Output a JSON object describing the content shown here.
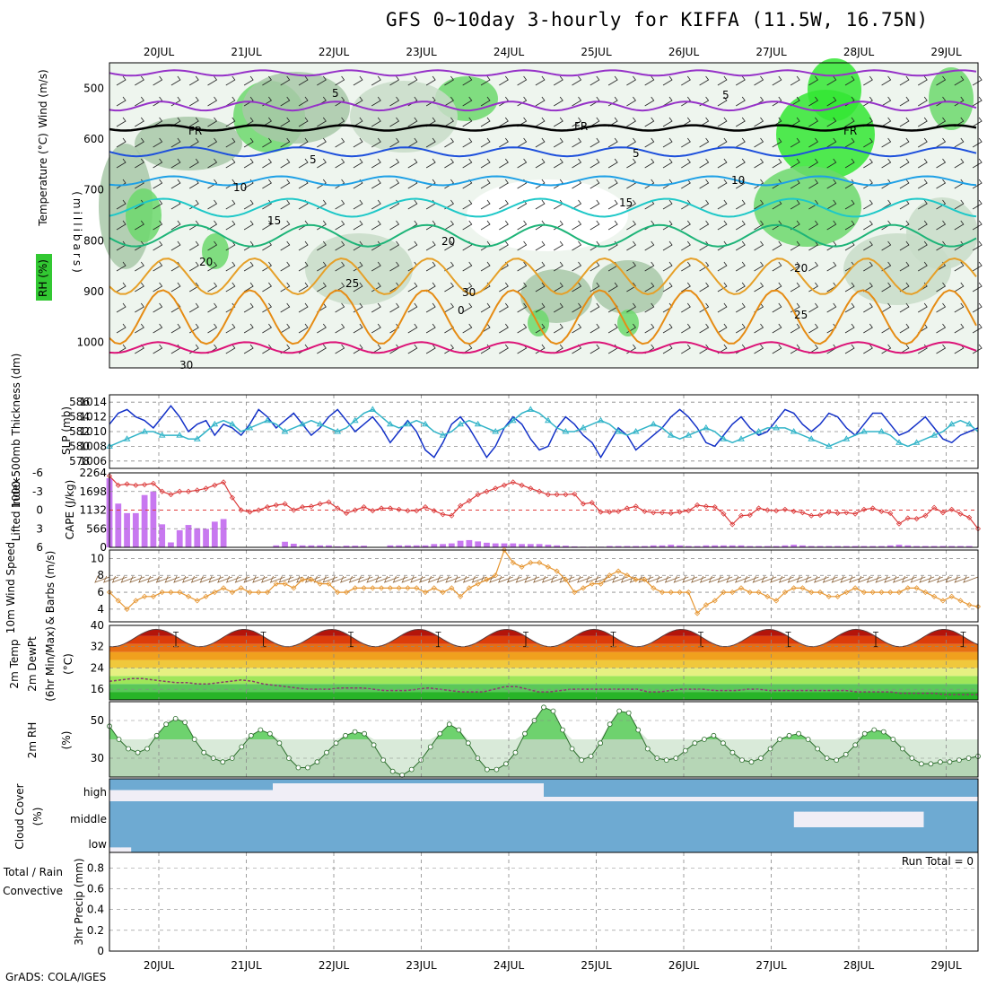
{
  "title": "GFS 0~10day 3-hourly for KIFFA (11.5W, 16.75N)",
  "credit": "GrADS: COLA/IGES",
  "dates": [
    "20JUL",
    "21JUL",
    "22JUL",
    "23JUL",
    "24JUL",
    "25JUL",
    "26JUL",
    "27JUL",
    "28JUL",
    "29JUL"
  ],
  "colors": {
    "rh_green": "#32c832",
    "slp_blue": "#1432c8",
    "thick_cyan": "#32b4c8",
    "li_red": "#dc3c3c",
    "cape_purple": "#c878f0",
    "wind_orange": "#e69632",
    "barb_brown": "#8c643c",
    "rh2m_green": "#3ca03c",
    "cloud_blue": "#6eaad2",
    "precip_green": "#28a028"
  },
  "chart_data": [
    {
      "type": "heatmap",
      "name": "Upper-air cross section",
      "labels": {
        "rh": "RH (%)",
        "temp": "Temperature (°C)",
        "wind": "Wind (m/s)",
        "axis": "(millibars)"
      },
      "yticks": [
        "500",
        "600",
        "700",
        "800",
        "900",
        "1000"
      ],
      "ylim": [
        450,
        1050
      ],
      "isotherm_labels": [
        "5",
        "5",
        "FR",
        "FR",
        "FR",
        "5",
        "5",
        "10",
        "10",
        "15",
        "15",
        "20",
        "20",
        "20",
        "25",
        "25",
        "30",
        "0",
        "30"
      ]
    },
    {
      "type": "line",
      "name": "SLP and thickness",
      "labels": {
        "thickness": "1000-500mb Thickness (dm)",
        "slp": "SLP (mb)"
      },
      "yticks_left": [
        "586",
        "584",
        "582",
        "580",
        "578"
      ],
      "yticks_right": [
        "1014",
        "1012",
        "1010",
        "1008",
        "1006"
      ],
      "ylim_left": [
        577,
        587
      ],
      "ylim_right": [
        1005,
        1015
      ],
      "series": [
        {
          "name": "SLP (mb)",
          "values": [
            1011,
            1012.5,
            1013,
            1012,
            1011.5,
            1010.5,
            1012,
            1013.5,
            1012,
            1010,
            1011,
            1011.5,
            1009.5,
            1011,
            1010.5,
            1009.5,
            1011,
            1013,
            1012,
            1010.5,
            1011.5,
            1012.5,
            1011,
            1009.5,
            1010.5,
            1012,
            1013,
            1011.5,
            1010,
            1011,
            1012,
            1010.5,
            1008.5,
            1010,
            1011.5,
            1010,
            1007.5,
            1006.5,
            1008.5,
            1011,
            1012,
            1010.5,
            1008.5,
            1006.5,
            1008,
            1010.5,
            1012,
            1011,
            1009,
            1007.5,
            1008,
            1010.5,
            1012,
            1011,
            1009.5,
            1008.5,
            1006.5,
            1008.5,
            1010.5,
            1009.5,
            1007.5,
            1008.5,
            1009.5,
            1010.5,
            1012,
            1013,
            1012,
            1010.5,
            1008.5,
            1008,
            1009.5,
            1011,
            1012,
            1010.5,
            1009.5,
            1010,
            1011.5,
            1013,
            1012.5,
            1011,
            1010,
            1011,
            1012.5,
            1012,
            1010.5,
            1009.5,
            1011,
            1012.5,
            1012.5,
            1011,
            1009.5,
            1010,
            1011,
            1012,
            1010.5,
            1009,
            1008.5,
            1009.5,
            1010,
            1010.5
          ]
        },
        {
          "name": "1000-500mb Thickness (dm)",
          "values": [
            580,
            580.5,
            581,
            581.5,
            582,
            582,
            581.5,
            581.5,
            581.5,
            581,
            581,
            582,
            583,
            583.5,
            583,
            582,
            582.5,
            583,
            583.5,
            583,
            582,
            582.5,
            583,
            583.5,
            583,
            582.5,
            582,
            582.5,
            583.5,
            584.5,
            585,
            584,
            583,
            582.5,
            583,
            583.5,
            583,
            582,
            581.5,
            582,
            583,
            583.5,
            583,
            582.5,
            582,
            582.5,
            583.5,
            584.5,
            585,
            584.5,
            583.5,
            582.5,
            582,
            582,
            582.5,
            583,
            583.5,
            583,
            582,
            581.5,
            582,
            582.5,
            583,
            582.5,
            581.5,
            581,
            581.5,
            582,
            582.5,
            582,
            581,
            580.5,
            581,
            581.5,
            582,
            582.5,
            582.5,
            582.5,
            582,
            581.5,
            581,
            580.5,
            580,
            580.5,
            581,
            581.5,
            582,
            582,
            582,
            581.5,
            580.5,
            580,
            580.5,
            581,
            581.5,
            582,
            583,
            583.5,
            583,
            582
          ]
        }
      ]
    },
    {
      "type": "bar",
      "name": "Lifted index and CAPE",
      "labels": {
        "li": "Lifted Index",
        "cape": "CAPE (J/kg)"
      },
      "yticks_left": [
        "-6",
        "-3",
        "0",
        "3",
        "6"
      ],
      "yticks_right": [
        "2264",
        "1698",
        "1132",
        "566",
        "0"
      ],
      "ylim_left": [
        -6,
        6
      ],
      "ylim_right": [
        0,
        2264
      ],
      "series": [
        {
          "name": "CAPE (J/kg)",
          "values": [
            2100,
            1330,
            1040,
            1040,
            1590,
            1700,
            700,
            150,
            520,
            680,
            580,
            560,
            780,
            860,
            0,
            0,
            0,
            0,
            0,
            60,
            170,
            110,
            60,
            60,
            60,
            60,
            30,
            50,
            50,
            50,
            0,
            0,
            60,
            60,
            60,
            60,
            60,
            100,
            100,
            120,
            200,
            220,
            180,
            140,
            120,
            120,
            120,
            100,
            100,
            100,
            80,
            60,
            50,
            30,
            20,
            20,
            20,
            40,
            40,
            40,
            40,
            40,
            60,
            60,
            80,
            60,
            40,
            40,
            60,
            60,
            60,
            60,
            60,
            40,
            40,
            40,
            40,
            60,
            80,
            60,
            40,
            40,
            40,
            40,
            40,
            40,
            40,
            40,
            40,
            60,
            80,
            60,
            40,
            40,
            40,
            40,
            40,
            40,
            40,
            0
          ]
        },
        {
          "name": "Lifted Index",
          "values": [
            -5.5,
            -4,
            -4.2,
            -4,
            -4.1,
            -4.3,
            -3,
            -2.5,
            -3,
            -3,
            -3.2,
            -3.5,
            -4,
            -4.5,
            -2,
            0,
            0.3,
            0,
            -0.5,
            -0.8,
            -1,
            0,
            -0.5,
            -0.6,
            -1,
            -1.3,
            -0.3,
            0.5,
            0,
            -0.5,
            0.1,
            -0.3,
            -0.3,
            -0.1,
            0.1,
            0.1,
            -0.5,
            0.1,
            0.7,
            0.9,
            -0.7,
            -1.5,
            -2.5,
            -3,
            -3.5,
            -4,
            -4.5,
            -4,
            -3.5,
            -3,
            -2.5,
            -2.5,
            -2.5,
            -2.6,
            -1,
            -1.2,
            0.3,
            0.3,
            0.2,
            -0.3,
            -0.6,
            0.2,
            0.4,
            0.4,
            0.5,
            0.3,
            0.1,
            -0.8,
            -0.6,
            -0.5,
            0.6,
            2.3,
            0.9,
            0.8,
            -0.3,
            0,
            0.1,
            -0.1,
            0.2,
            0.4,
            0.9,
            0.8,
            0.3,
            0.5,
            0.4,
            0.6,
            -0.1,
            -0.3,
            0.2,
            0.5,
            2.2,
            1.3,
            1.4,
            0.9,
            -0.4,
            0.4,
            -0.1,
            0.6,
            1.2,
            3
          ]
        }
      ]
    },
    {
      "type": "line",
      "name": "10m wind",
      "labels": {
        "speed": "10m Wind Speed",
        "barbs": "& Barbs (m/s)"
      },
      "yticks": [
        "4",
        "6",
        "8",
        "10"
      ],
      "ylim": [
        2.5,
        11
      ],
      "series": [
        {
          "name": "10m Wind Speed (m/s)",
          "values": [
            6,
            5,
            4,
            5,
            5.5,
            5.5,
            6,
            6,
            6,
            5.5,
            5,
            5.5,
            6,
            6.5,
            6,
            6.5,
            6,
            6,
            6,
            7,
            7,
            6.5,
            7.5,
            7.5,
            7,
            7,
            6,
            6,
            6.5,
            6.5,
            6.5,
            6.5,
            6.5,
            6.5,
            6.5,
            6.5,
            6,
            6.5,
            6,
            6.5,
            5.5,
            6.5,
            7,
            7.5,
            8,
            11,
            9.5,
            9,
            9.5,
            9.5,
            9,
            8.5,
            7.5,
            6,
            6.5,
            7,
            7,
            8,
            8.5,
            8,
            7.5,
            7.5,
            6.5,
            6,
            6,
            6,
            6,
            3.5,
            4.5,
            5,
            6,
            6,
            6.5,
            6,
            6,
            5.5,
            5,
            6,
            6.5,
            6.5,
            6,
            6,
            5.5,
            5.5,
            6,
            6.5,
            6,
            6,
            6,
            6,
            6,
            6.5,
            6.5,
            6,
            5.5,
            5,
            5.5,
            5,
            4.5,
            4.3
          ]
        }
      ]
    },
    {
      "type": "area",
      "name": "2m temperature and dewpoint",
      "labels": {
        "temp": "2m Temp",
        "dewpt": "2m DewPt",
        "minmax": "(6hr Min/Max)",
        "unit": "(°C)"
      },
      "yticks": [
        "16",
        "24",
        "32",
        "40"
      ],
      "ylim": [
        12,
        40
      ],
      "series": [
        {
          "name": "2m Temp (°C)",
          "min": 32,
          "max": 38.5,
          "period_days": 1
        },
        {
          "name": "2m DewPt (°C)",
          "values": [
            19,
            19.5,
            20,
            20,
            19.5,
            19,
            18.5,
            18.5,
            18,
            18,
            18.5,
            19,
            19.5,
            19,
            18,
            17.5,
            17,
            16.5,
            16,
            16,
            16,
            16.5,
            16.5,
            16.5,
            16,
            15.5,
            15.5,
            15.5,
            16,
            16.5,
            16,
            15.5,
            15,
            15,
            15,
            16,
            17,
            17,
            16,
            15,
            15,
            15.5,
            16,
            16,
            16,
            16,
            16,
            16,
            16,
            15,
            15,
            15.5,
            16,
            16,
            16,
            15.5,
            15.5,
            15.5,
            16,
            16,
            15.5,
            15.5,
            15.5,
            15.5,
            15.5,
            15.5,
            15.5,
            15.5,
            15,
            15,
            15,
            15,
            14.5,
            14.5,
            14.5,
            14.5,
            14,
            14,
            14,
            14
          ]
        }
      ]
    },
    {
      "type": "area",
      "name": "2m RH",
      "labels": {
        "rh": "2m RH",
        "unit": "(%)"
      },
      "yticks": [
        "30",
        "50"
      ],
      "ylim": [
        20,
        60
      ],
      "series": [
        {
          "name": "2m RH (%)",
          "values": [
            47,
            40,
            35,
            33,
            35,
            42,
            48,
            51,
            49,
            40,
            33,
            30,
            28,
            30,
            36,
            42,
            45,
            43,
            38,
            30,
            25,
            25,
            28,
            33,
            38,
            42,
            44,
            43,
            37,
            29,
            23,
            21,
            24,
            29,
            36,
            43,
            48,
            45,
            38,
            30,
            24,
            24,
            27,
            33,
            43,
            50,
            57,
            55,
            45,
            35,
            29,
            31,
            38,
            48,
            55,
            54,
            45,
            35,
            30,
            29,
            30,
            34,
            38,
            40,
            42,
            38,
            33,
            29,
            28,
            30,
            35,
            40,
            42,
            43,
            40,
            35,
            30,
            29,
            32,
            37,
            43,
            45,
            44,
            40,
            35,
            30,
            27,
            27,
            28,
            28,
            29,
            30,
            31
          ]
        }
      ]
    },
    {
      "type": "heatmap",
      "name": "Cloud cover",
      "labels": {
        "cloud": "Cloud Cover",
        "unit": "(%)"
      },
      "yticks": [
        "high",
        "middle",
        "low"
      ]
    },
    {
      "type": "line",
      "name": "3hr precipitation",
      "labels": {
        "total": "Total / Rain",
        "conv": "Convective",
        "axis": "3hr Precip (mm)",
        "run_total": "Run Total = 0"
      },
      "yticks": [
        "0",
        "0.2",
        "0.4",
        "0.6",
        "0.8"
      ],
      "ylim": [
        0,
        0.95
      ],
      "series": [
        {
          "name": "3hr Precip (mm)",
          "values": []
        }
      ]
    }
  ]
}
